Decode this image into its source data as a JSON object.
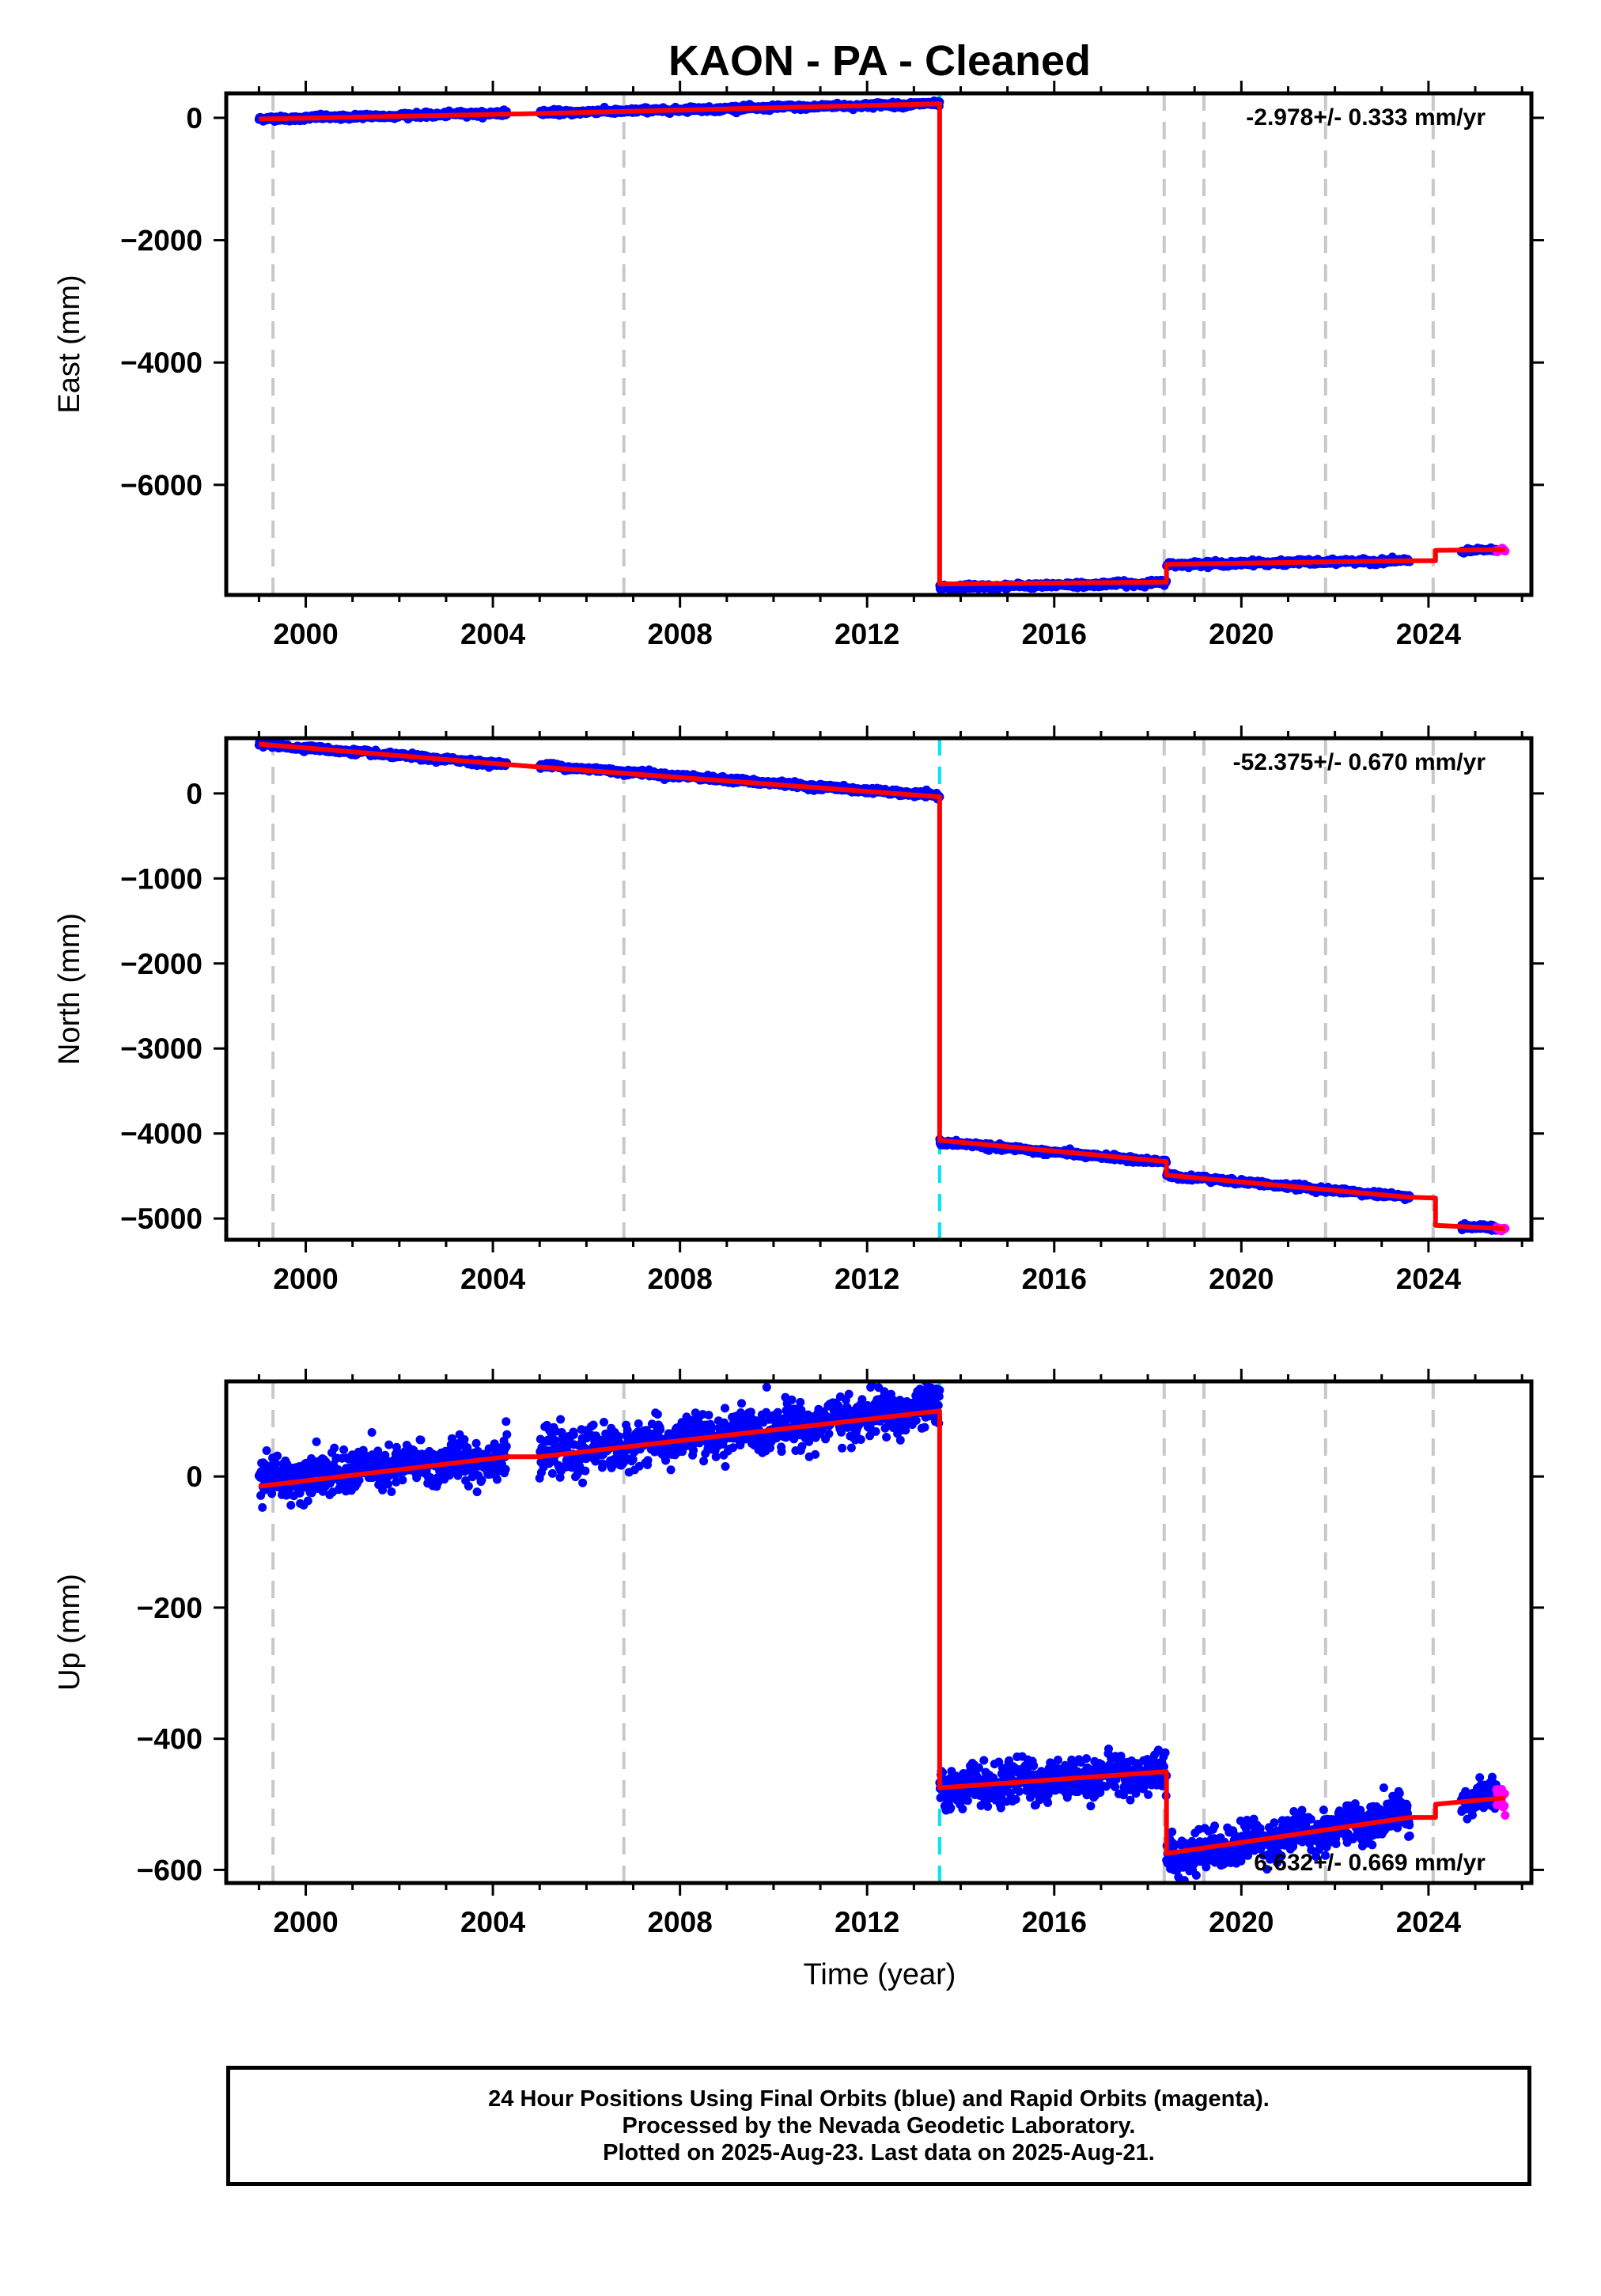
{
  "title": "KAON  - PA - Cleaned",
  "xlabel": "Time (year)",
  "colors": {
    "final_orbits": "#0000ff",
    "rapid_orbits": "#ff00ff",
    "model": "#ff0000",
    "equipment_change": "#c8c8c8",
    "earthquake": "#00e5ee",
    "axis": "#000000"
  },
  "chart_data": [
    {
      "type": "scatter",
      "component": "East",
      "ylabel": "East (mm)",
      "rate_label": "-2.978+/- 0.333 mm/yr",
      "xlim": [
        1998.3,
        2026.2
      ],
      "ylim": [
        -7800,
        400
      ],
      "xticks": [
        2000,
        2004,
        2008,
        2012,
        2016,
        2020,
        2024
      ],
      "yticks": [
        0,
        -2000,
        -4000,
        -6000
      ],
      "segments": [
        {
          "x": [
            1999.0,
            2004.3
          ],
          "y": [
            -20,
            80
          ],
          "scatter": 20
        },
        {
          "x": [
            2005.0,
            2013.55
          ],
          "y": [
            80,
            230
          ],
          "scatter": 20
        },
        {
          "x": [
            2013.55,
            2018.4
          ],
          "y": [
            -7680,
            -7600
          ],
          "scatter": 20
        },
        {
          "x": [
            2018.4,
            2023.6
          ],
          "y": [
            -7300,
            -7240
          ],
          "scatter": 20
        },
        {
          "x": [
            2024.7,
            2025.64
          ],
          "y": [
            -7080,
            -7060
          ],
          "scatter": 15
        }
      ],
      "model": [
        [
          1999.0,
          -20
        ],
        [
          2004.3,
          60
        ],
        [
          2005.0,
          70
        ],
        [
          2013.55,
          230
        ],
        [
          2013.55,
          -7620
        ],
        [
          2018.4,
          -7590
        ],
        [
          2018.4,
          -7300
        ],
        [
          2023.6,
          -7240
        ],
        [
          2024.15,
          -7240
        ],
        [
          2024.15,
          -7070
        ],
        [
          2025.64,
          -7060
        ]
      ],
      "equipment_changes": [
        1999.3,
        2006.8,
        2018.35,
        2019.2,
        2021.8,
        2024.1
      ],
      "earthquakes": [
        2013.55
      ]
    },
    {
      "type": "scatter",
      "component": "North",
      "ylabel": "North (mm)",
      "rate_label": "-52.375+/- 0.670 mm/yr",
      "xlim": [
        1998.3,
        2026.2
      ],
      "ylim": [
        -5250,
        650
      ],
      "xticks": [
        2000,
        2004,
        2008,
        2012,
        2016,
        2020,
        2024
      ],
      "yticks": [
        0,
        -1000,
        -2000,
        -3000,
        -4000,
        -5000
      ],
      "segments": [
        {
          "x": [
            1999.0,
            2004.3
          ],
          "y": [
            580,
            340
          ],
          "scatter": 15
        },
        {
          "x": [
            2005.0,
            2013.55
          ],
          "y": [
            330,
            -30
          ],
          "scatter": 15
        },
        {
          "x": [
            2013.55,
            2018.4
          ],
          "y": [
            -4100,
            -4340
          ],
          "scatter": 15
        },
        {
          "x": [
            2018.4,
            2023.6
          ],
          "y": [
            -4490,
            -4750
          ],
          "scatter": 15
        },
        {
          "x": [
            2024.7,
            2025.64
          ],
          "y": [
            -5080,
            -5130
          ],
          "scatter": 15
        }
      ],
      "model": [
        [
          1999.0,
          580
        ],
        [
          2004.3,
          340
        ],
        [
          2005.0,
          310
        ],
        [
          2013.55,
          -40
        ],
        [
          2013.55,
          -4080
        ],
        [
          2018.4,
          -4330
        ],
        [
          2018.4,
          -4490
        ],
        [
          2023.6,
          -4750
        ],
        [
          2024.15,
          -4760
        ],
        [
          2024.15,
          -5080
        ],
        [
          2025.64,
          -5120
        ]
      ],
      "equipment_changes": [
        1999.3,
        2006.8,
        2018.35,
        2019.2,
        2021.8,
        2024.1
      ],
      "earthquakes": [
        2013.55
      ]
    },
    {
      "type": "scatter",
      "component": "Up",
      "ylabel": "Up (mm)",
      "rate_label": "6.632+/- 0.669 mm/yr",
      "xlim": [
        1998.3,
        2026.2
      ],
      "ylim": [
        -620,
        145
      ],
      "xticks": [
        2000,
        2004,
        2008,
        2012,
        2016,
        2020,
        2024
      ],
      "yticks": [
        0,
        -200,
        -400,
        -600
      ],
      "segments": [
        {
          "x": [
            1999.0,
            2004.3
          ],
          "y": [
            -5,
            30
          ],
          "scatter": 16
        },
        {
          "x": [
            2005.0,
            2013.55
          ],
          "y": [
            30,
            105
          ],
          "scatter": 16
        },
        {
          "x": [
            2013.55,
            2018.4
          ],
          "y": [
            -475,
            -450
          ],
          "scatter": 15
        },
        {
          "x": [
            2018.4,
            2023.6
          ],
          "y": [
            -580,
            -515
          ],
          "scatter": 15
        },
        {
          "x": [
            2024.7,
            2025.64
          ],
          "y": [
            -495,
            -485
          ],
          "scatter": 12
        }
      ],
      "model": [
        [
          1999.0,
          -15
        ],
        [
          2004.3,
          30
        ],
        [
          2005.0,
          30
        ],
        [
          2013.55,
          100
        ],
        [
          2013.55,
          -475
        ],
        [
          2018.4,
          -450
        ],
        [
          2018.4,
          -575
        ],
        [
          2023.6,
          -520
        ],
        [
          2024.15,
          -520
        ],
        [
          2024.15,
          -500
        ],
        [
          2025.64,
          -490
        ]
      ],
      "equipment_changes": [
        1999.3,
        2006.8,
        2018.35,
        2019.2,
        2021.8,
        2024.1
      ],
      "earthquakes": [
        2013.55
      ]
    }
  ],
  "footer": {
    "line1": "24 Hour Positions Using Final Orbits (blue) and Rapid Orbits (magenta).",
    "line2": "Processed by the Nevada Geodetic Laboratory.",
    "line3": "Plotted on 2025-Aug-23. Last data on 2025-Aug-21."
  }
}
